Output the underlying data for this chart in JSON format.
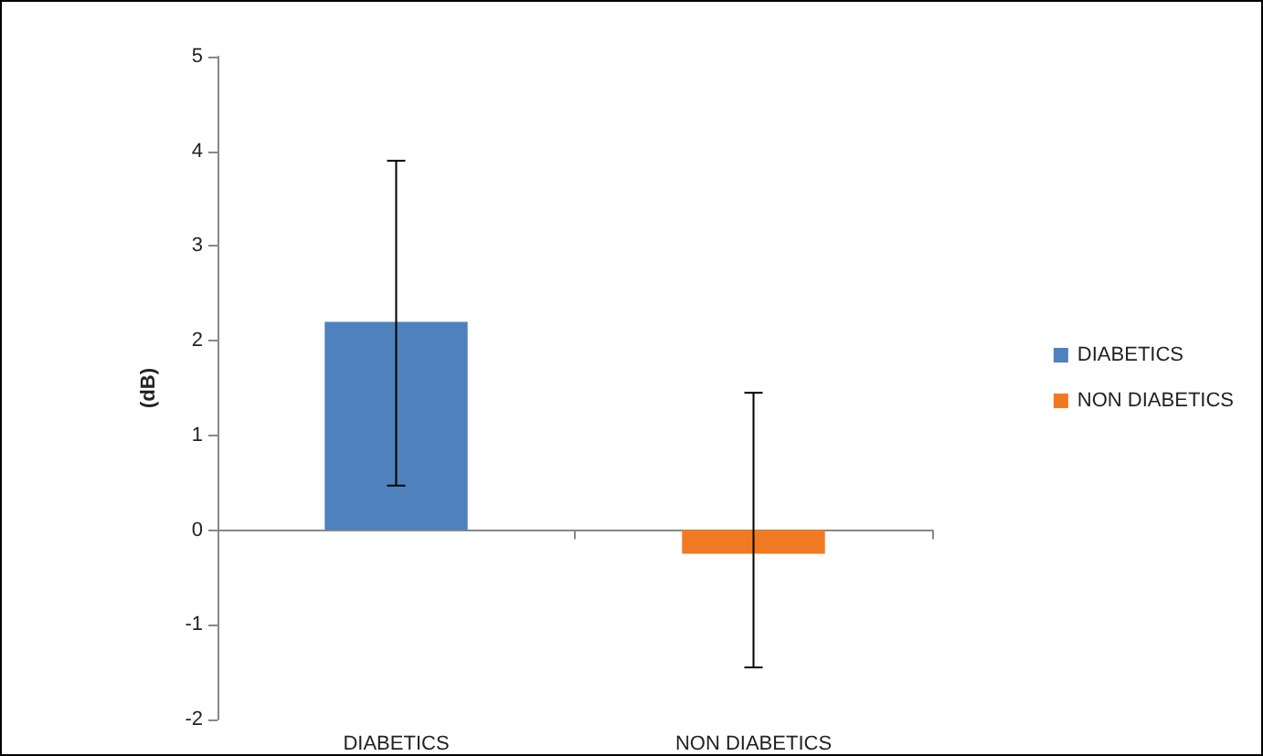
{
  "chart_data": {
    "type": "bar",
    "ylabel": "(dB)",
    "categories": [
      "DIABETICS",
      "NON DIABETICS"
    ],
    "series": [
      {
        "name": "DIABETICS",
        "color": "#4f81bd",
        "values": [
          2.2,
          null
        ],
        "errors": [
          [
            0.47,
            3.9
          ],
          null
        ]
      },
      {
        "name": "NON DIABETICS",
        "color": "#f07a22",
        "values": [
          null,
          -0.25
        ],
        "errors": [
          null,
          [
            -1.45,
            1.45
          ]
        ]
      }
    ],
    "ylim": [
      -2,
      5
    ],
    "yticks": [
      -2,
      -1,
      0,
      1,
      2,
      3,
      4,
      5
    ],
    "legend": "right"
  }
}
